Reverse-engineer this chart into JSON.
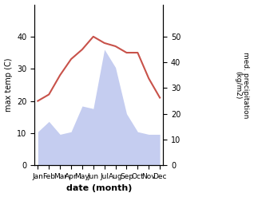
{
  "months": [
    "Jan",
    "Feb",
    "Mar",
    "Apr",
    "May",
    "Jun",
    "Jul",
    "Aug",
    "Sep",
    "Oct",
    "Nov",
    "Dec"
  ],
  "temperature": [
    20,
    22,
    28,
    33,
    36,
    40,
    38,
    37,
    35,
    35,
    27,
    21
  ],
  "precipitation": [
    13,
    17,
    12,
    13,
    23,
    22,
    45,
    38,
    20,
    13,
    12,
    12
  ],
  "temp_color": "#c8524a",
  "precip_fill_color": "#c5cdf0",
  "xlabel": "date (month)",
  "ylabel_left": "max temp (C)",
  "ylabel_right": "med. precipitation\n(kg/m2)",
  "ylim_left": [
    0,
    50
  ],
  "ylim_right": [
    0,
    62.5
  ],
  "yticks_left": [
    0,
    10,
    20,
    30,
    40
  ],
  "yticks_right": [
    0,
    10,
    20,
    30,
    40,
    50
  ],
  "figsize": [
    3.18,
    2.47
  ],
  "dpi": 100
}
